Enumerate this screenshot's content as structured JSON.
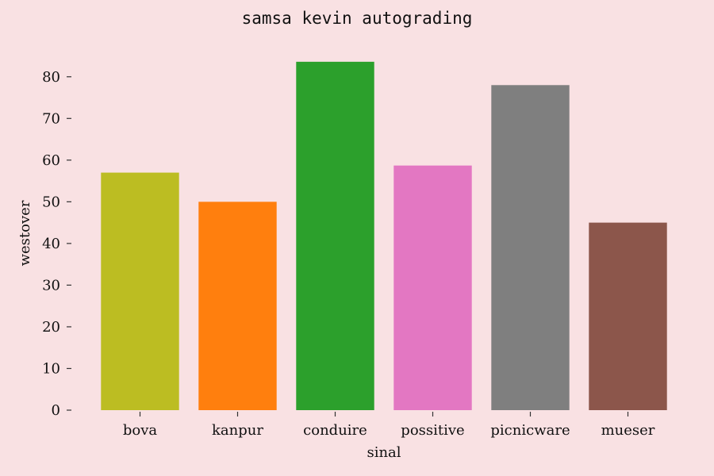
{
  "chart_data": {
    "type": "bar",
    "title": "samsa kevin autograding",
    "xlabel": "sinal",
    "ylabel": "westover",
    "categories": [
      "bova",
      "kanpur",
      "conduire",
      "possitive",
      "picnicware",
      "mueser"
    ],
    "values": [
      57,
      50,
      83.6,
      58.7,
      78,
      45
    ],
    "colors": [
      "#bcbd22",
      "#ff7f0e",
      "#2ca02c",
      "#e377c2",
      "#7f7f7f",
      "#8c564b"
    ],
    "ylim": [
      0,
      87
    ],
    "yticks": [
      0,
      10,
      20,
      30,
      40,
      50,
      60,
      70,
      80
    ],
    "grid": false,
    "legend": "none",
    "background": "#f9e1e3"
  }
}
